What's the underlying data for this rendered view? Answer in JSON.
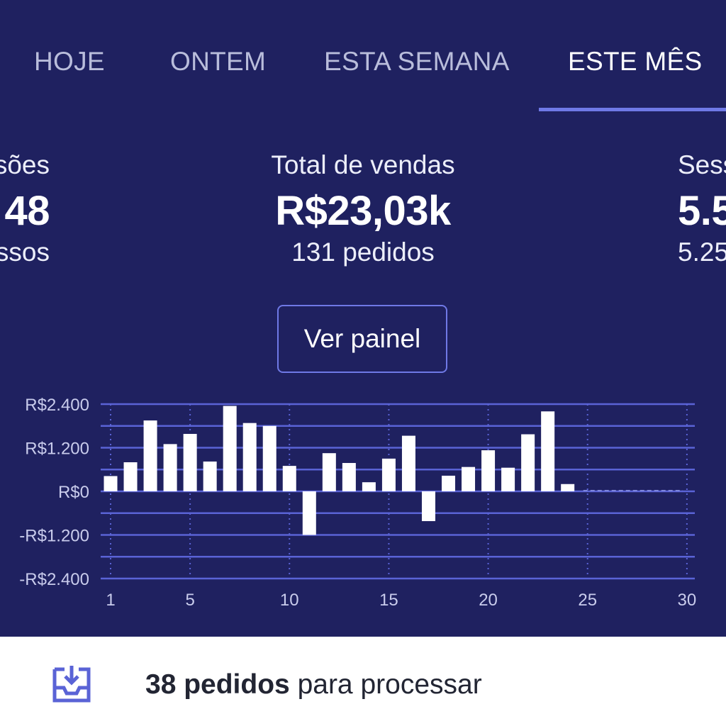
{
  "tabs": [
    {
      "label": "HOJE",
      "active": false
    },
    {
      "label": "ONTEM",
      "active": false
    },
    {
      "label": "ESTA SEMANA",
      "active": false
    },
    {
      "label": "ESTE MÊS",
      "active": true
    }
  ],
  "stats": {
    "left": {
      "label": "sões",
      "value": "48",
      "sub": "ssos"
    },
    "middle": {
      "label": "Total de vendas",
      "value": "R$23,03k",
      "sub": "131 pedidos"
    },
    "right": {
      "label": "Sess",
      "value": "5.5",
      "sub": "5.25"
    }
  },
  "dashboard_button": {
    "label": "Ver painel"
  },
  "chart_data": {
    "type": "bar",
    "x": [
      1,
      2,
      3,
      4,
      5,
      6,
      7,
      8,
      9,
      10,
      11,
      12,
      13,
      14,
      15,
      16,
      17,
      18,
      19,
      20,
      21,
      22,
      23,
      24
    ],
    "values": [
      420,
      800,
      1950,
      1300,
      1580,
      820,
      2350,
      1880,
      1800,
      700,
      -1200,
      1050,
      780,
      250,
      900,
      1530,
      -820,
      430,
      670,
      1130,
      650,
      1570,
      2200,
      200
    ],
    "x_range": [
      1,
      30
    ],
    "xticks": [
      "1",
      "5",
      "10",
      "15",
      "20",
      "25",
      "30"
    ],
    "ylim": [
      -2400,
      2400
    ],
    "yticks": [
      "R$2.400",
      "R$1.200",
      "R$0",
      "-R$1.200",
      "-R$2.400"
    ],
    "grid": true,
    "colors": {
      "bars": "#ffffff",
      "grid": "#5a63d6",
      "zero_projection": "#7e86dd"
    }
  },
  "orders_banner": {
    "icon": "inbox-download-icon",
    "count_text": "38 pedidos",
    "rest_text": " para processar"
  }
}
